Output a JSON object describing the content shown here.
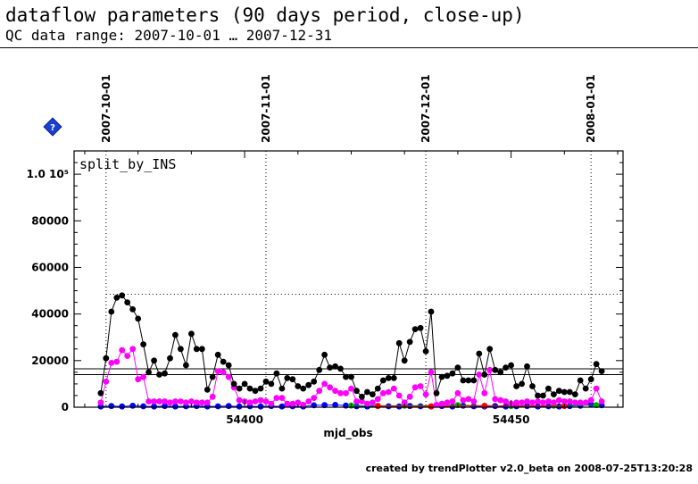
{
  "header": {
    "title": "dataflow parameters (90 days period, close-up)",
    "subtitle": "QC data range: 2007-10-01 … 2007-12-31"
  },
  "footer": {
    "credit": "created by trendPlotter v2.0_beta on 2008-07-25T13:20:28"
  },
  "help_icon": {
    "name": "help-icon",
    "glyph": "?"
  },
  "chart_data": {
    "type": "scatter",
    "title": "",
    "panel_label": "split_by_INS",
    "xlabel": "mjd_obs",
    "ylabel": "",
    "xlim": [
      54368,
      54471
    ],
    "ylim": [
      0,
      110000
    ],
    "grid": false,
    "x_ticks": [
      54400,
      54450
    ],
    "y_ticks": [
      {
        "value": 0,
        "label": "0"
      },
      {
        "value": 20000,
        "label": "20000"
      },
      {
        "value": 40000,
        "label": "40000"
      },
      {
        "value": 60000,
        "label": "60000"
      },
      {
        "value": 80000,
        "label": "80000"
      },
      {
        "value": 100000,
        "label": "1.0 10⁵"
      }
    ],
    "date_markers": [
      {
        "mjd": 54374,
        "label": "2007-10-01"
      },
      {
        "mjd": 54404,
        "label": "2007-11-01"
      },
      {
        "mjd": 54434,
        "label": "2007-12-01"
      },
      {
        "mjd": 54465,
        "label": "2008-01-01"
      }
    ],
    "reference_lines": [
      {
        "style": "dotted",
        "value": 48500,
        "x_from": 54374,
        "x_to": 54471
      },
      {
        "style": "solid",
        "value": 16500
      },
      {
        "style": "solid",
        "value": 14000
      }
    ],
    "series": [
      {
        "color": "#000000",
        "x": [
          54373,
          54374,
          54375,
          54376,
          54377,
          54378,
          54379,
          54380,
          54381,
          54382,
          54383,
          54384,
          54385,
          54386,
          54387,
          54388,
          54389,
          54390,
          54391,
          54392,
          54393,
          54394,
          54395,
          54396,
          54397,
          54398,
          54399,
          54400,
          54401,
          54402,
          54403,
          54404,
          54405,
          54406,
          54407,
          54408,
          54409,
          54410,
          54411,
          54412,
          54413,
          54414,
          54415,
          54416,
          54417,
          54418,
          54419,
          54420,
          54421,
          54422,
          54423,
          54424,
          54425,
          54426,
          54427,
          54428,
          54429,
          54430,
          54431,
          54432,
          54433,
          54434,
          54435,
          54436,
          54437,
          54438,
          54439,
          54440,
          54441,
          54442,
          54443,
          54444,
          54445,
          54446,
          54447,
          54448,
          54449,
          54450,
          54451,
          54452,
          54453,
          54454,
          54455,
          54456,
          54457,
          54458,
          54459,
          54460,
          54461,
          54462,
          54463,
          54464,
          54465,
          54466,
          54467
        ],
        "y": [
          6000,
          21000,
          41000,
          47000,
          48000,
          45000,
          42000,
          38000,
          27000,
          15000,
          20000,
          14000,
          14500,
          21000,
          31000,
          25000,
          18000,
          31500,
          25000,
          25000,
          7500,
          13000,
          22500,
          19500,
          18000,
          10000,
          8000,
          10000,
          8000,
          7000,
          8000,
          11000,
          10000,
          14500,
          8000,
          12500,
          12000,
          9000,
          8000,
          9500,
          11000,
          16000,
          22500,
          17000,
          17500,
          16500,
          13000,
          13000,
          7000,
          4500,
          6500,
          5500,
          8000,
          11500,
          12500,
          12500,
          27500,
          20000,
          28000,
          33500,
          34000,
          24000,
          41000,
          6000,
          13000,
          13500,
          14500,
          17000,
          11500,
          11500,
          11500,
          23000,
          14000,
          25000,
          16000,
          15000,
          17000,
          18000,
          9000,
          10000,
          17500,
          9000,
          5000,
          5000,
          8000,
          5500,
          7000,
          6500,
          6500,
          5500,
          11500,
          8000,
          12000,
          18500,
          15500
        ]
      },
      {
        "color": "#ff00ff",
        "x": [
          54373,
          54374,
          54375,
          54376,
          54377,
          54378,
          54379,
          54380,
          54381,
          54382,
          54383,
          54384,
          54385,
          54386,
          54387,
          54388,
          54389,
          54390,
          54391,
          54392,
          54393,
          54394,
          54395,
          54396,
          54397,
          54398,
          54399,
          54400,
          54401,
          54402,
          54403,
          54404,
          54405,
          54406,
          54407,
          54408,
          54409,
          54410,
          54411,
          54412,
          54413,
          54414,
          54415,
          54416,
          54417,
          54418,
          54419,
          54420,
          54421,
          54422,
          54423,
          54424,
          54425,
          54426,
          54427,
          54428,
          54429,
          54430,
          54431,
          54432,
          54433,
          54434,
          54435,
          54436,
          54437,
          54438,
          54439,
          54440,
          54441,
          54442,
          54443,
          54444,
          54445,
          54446,
          54447,
          54448,
          54449,
          54450,
          54451,
          54452,
          54453,
          54454,
          54455,
          54456,
          54457,
          54458,
          54459,
          54460,
          54461,
          54462,
          54463,
          54464,
          54465,
          54466,
          54467
        ],
        "y": [
          2000,
          11000,
          19000,
          19500,
          24500,
          22000,
          25000,
          12000,
          13000,
          2500,
          2500,
          2500,
          2500,
          2000,
          2500,
          2500,
          2000,
          2500,
          2000,
          2000,
          2000,
          4500,
          15500,
          15000,
          13000,
          8500,
          3000,
          2500,
          2000,
          2500,
          3000,
          2500,
          1500,
          4000,
          4000,
          1500,
          1500,
          2000,
          1000,
          2500,
          4000,
          7000,
          10000,
          8500,
          7000,
          6000,
          6000,
          8000,
          2500,
          2500,
          1500,
          2000,
          3500,
          6000,
          6500,
          8000,
          5000,
          2000,
          4500,
          8500,
          9000,
          5500,
          15000,
          1000,
          1500,
          2000,
          2500,
          6000,
          3000,
          3500,
          2500,
          14000,
          6000,
          16000,
          3500,
          3000,
          2500,
          1500,
          2000,
          2000,
          2500,
          2000,
          2500,
          2000,
          2500,
          2000,
          3000,
          2500,
          2500,
          2000,
          2000,
          2000,
          3000,
          8000,
          2500
        ]
      },
      {
        "color": "#0000ff",
        "x": [
          54373,
          54375,
          54377,
          54379,
          54381,
          54383,
          54385,
          54387,
          54389,
          54391,
          54393,
          54395,
          54397,
          54399,
          54401,
          54403,
          54405,
          54407,
          54409,
          54411,
          54413,
          54415,
          54417,
          54419,
          54421,
          54423,
          54425,
          54427,
          54429,
          54431,
          54433,
          54435,
          54437,
          54439,
          54441,
          54443,
          54445,
          54447,
          54449,
          54451,
          54453,
          54455,
          54457,
          54459,
          54461,
          54463,
          54465,
          54467
        ],
        "y": [
          300,
          500,
          300,
          600,
          400,
          300,
          500,
          300,
          400,
          500,
          300,
          400,
          500,
          300,
          400,
          300,
          500,
          300,
          400,
          300,
          800,
          900,
          1000,
          700,
          400,
          300,
          500,
          400,
          300,
          500,
          400,
          300,
          500,
          300,
          600,
          400,
          300,
          500,
          300,
          400,
          500,
          300,
          400,
          300,
          500,
          600,
          1200,
          800
        ]
      },
      {
        "color": "#00aa00",
        "x": [
          54420,
          54430,
          54440,
          54450,
          54458,
          54466
        ],
        "y": [
          700,
          600,
          900,
          500,
          600,
          900
        ]
      },
      {
        "color": "#ff0000",
        "x": [
          54425,
          54435,
          54445,
          54460
        ],
        "y": [
          500,
          400,
          600,
          500
        ]
      }
    ]
  }
}
